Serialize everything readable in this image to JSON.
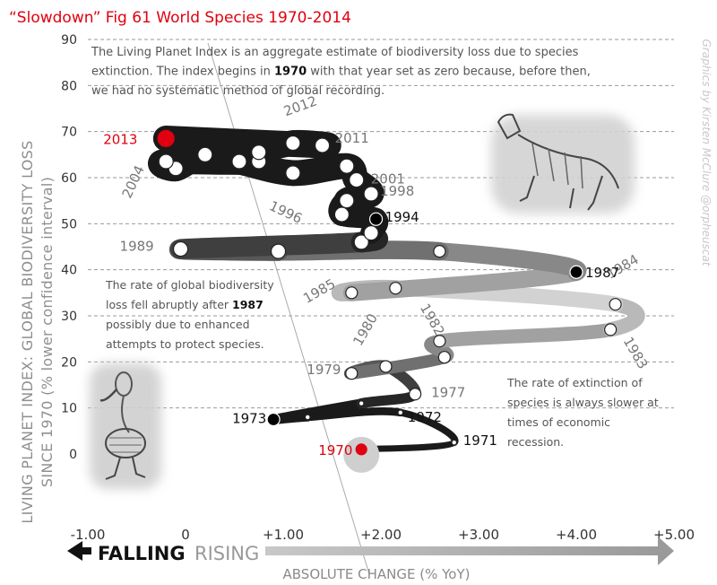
{
  "chart_data": {
    "type": "line",
    "title": "“Slowdown” Fig 61 World Species 1970-2014",
    "ylabel_line1": "LIVING PLANET INDEX: GLOBAL BIODIVERSITY LOSS",
    "ylabel_line2": "SINCE 1970 (% lower confidence interval)",
    "xlabel": "ABSOLUTE CHANGE (% YoY)",
    "falling_label": "FALLING",
    "rising_label": "RISING",
    "credit": "Graphics by Kirsten McClure @orpheuscat",
    "xlim": [
      -1,
      5
    ],
    "ylim": [
      0,
      90
    ],
    "xticks": [
      "-1.00",
      "0",
      "+1.00",
      "+2.00",
      "+3.00",
      "+4.00",
      "+5.00"
    ],
    "yticks": [
      "0",
      "10",
      "20",
      "30",
      "40",
      "50",
      "60",
      "70",
      "80",
      "90"
    ],
    "grid": "horizontal dashed",
    "colors": {
      "title": "#e0000f",
      "highlight": "#e0000f",
      "path_dark": "#1a1a1a",
      "path_light": "#d2d2d2",
      "grid": "#999999",
      "axis_text": "#6e6e6e"
    },
    "series": [
      {
        "points": [
          {
            "x": 1.8,
            "y": 1
          },
          {
            "x": 2.75,
            "y": 2.5
          },
          {
            "x": 2.2,
            "y": 9
          },
          {
            "x": 1.25,
            "y": 8
          },
          {
            "x": 0.9,
            "y": 7.5
          },
          {
            "x": 1.8,
            "y": 11
          },
          {
            "x": 2.35,
            "y": 13
          },
          {
            "x": 2.05,
            "y": 19
          },
          {
            "x": 1.7,
            "y": 17.5
          },
          {
            "x": 2.65,
            "y": 21
          },
          {
            "x": 2.6,
            "y": 24.5
          },
          {
            "x": 4.35,
            "y": 27
          },
          {
            "x": 4.4,
            "y": 32.5
          },
          {
            "x": 2.15,
            "y": 36
          },
          {
            "x": 1.7,
            "y": 35
          },
          {
            "x": 4.0,
            "y": 39.5
          },
          {
            "x": 2.6,
            "y": 44
          },
          {
            "x": 0.95,
            "y": 44
          },
          {
            "x": -0.05,
            "y": 44.5
          },
          {
            "x": 1.8,
            "y": 46
          },
          {
            "x": 1.9,
            "y": 48
          },
          {
            "x": 1.95,
            "y": 51
          },
          {
            "x": 1.6,
            "y": 52
          },
          {
            "x": 1.65,
            "y": 55
          },
          {
            "x": 1.9,
            "y": 56.5
          },
          {
            "x": 1.75,
            "y": 59.5
          },
          {
            "x": 1.65,
            "y": 62.5
          },
          {
            "x": 1.1,
            "y": 61
          },
          {
            "x": 0.55,
            "y": 63.5
          },
          {
            "x": 0.2,
            "y": 65
          },
          {
            "x": -0.1,
            "y": 62
          },
          {
            "x": -0.2,
            "y": 63.5
          },
          {
            "x": 0.75,
            "y": 63.5
          },
          {
            "x": 0.75,
            "y": 65.5
          },
          {
            "x": 1.1,
            "y": 67.5
          },
          {
            "x": 1.4,
            "y": 67
          },
          {
            "x": -0.2,
            "y": 68.5
          }
        ]
      }
    ],
    "year_labels": [
      {
        "year": "1970",
        "x": 1.8,
        "y": 1,
        "color": "red"
      },
      {
        "year": "1971",
        "x": 2.75,
        "y": 2.5,
        "color": "black"
      },
      {
        "year": "1972",
        "x": 2.2,
        "y": 9,
        "color": "black"
      },
      {
        "year": "1973",
        "x": 0.9,
        "y": 7.5,
        "color": "black"
      },
      {
        "year": "1977",
        "x": 2.35,
        "y": 13,
        "color": "gray"
      },
      {
        "year": "1979",
        "x": 1.7,
        "y": 17.5,
        "color": "gray"
      },
      {
        "year": "1980",
        "x": 2.05,
        "y": 19,
        "color": "gray"
      },
      {
        "year": "1982",
        "x": 2.6,
        "y": 24.5,
        "color": "gray"
      },
      {
        "year": "1983",
        "x": 4.35,
        "y": 27,
        "color": "gray"
      },
      {
        "year": "1984",
        "x": 4.4,
        "y": 32.5,
        "color": "gray"
      },
      {
        "year": "1985",
        "x": 1.7,
        "y": 35,
        "color": "gray"
      },
      {
        "year": "1987",
        "x": 4.0,
        "y": 39.5,
        "color": "black"
      },
      {
        "year": "1989",
        "x": -0.05,
        "y": 44.5,
        "color": "gray"
      },
      {
        "year": "1994",
        "x": 1.95,
        "y": 51,
        "color": "black"
      },
      {
        "year": "1996",
        "x": 1.6,
        "y": 52,
        "color": "gray"
      },
      {
        "year": "1998",
        "x": 1.9,
        "y": 56.5,
        "color": "gray"
      },
      {
        "year": "2001",
        "x": 1.75,
        "y": 59.5,
        "color": "gray"
      },
      {
        "year": "2004",
        "x": -0.2,
        "y": 63.5,
        "color": "gray"
      },
      {
        "year": "2011",
        "x": 1.4,
        "y": 67,
        "color": "gray"
      },
      {
        "year": "2012",
        "x": 1.1,
        "y": 67.5,
        "color": "gray"
      },
      {
        "year": "2013",
        "x": -0.2,
        "y": 68.5,
        "color": "red"
      }
    ],
    "annotations": [
      {
        "lines": [
          [
            {
              "t": "The Living Planet Index is an aggregate estimate of biodiversity loss due to species"
            }
          ],
          [
            {
              "t": "extinction. The index begins in "
            },
            {
              "t": "1970",
              "b": true
            },
            {
              "t": " with that year set as zero because, before then,"
            }
          ],
          [
            {
              "t": "we had no systematic method of global recording."
            }
          ]
        ]
      },
      {
        "lines": [
          [
            {
              "t": "The rate of global biodiversity"
            }
          ],
          [
            {
              "t": "loss fell abruptly after "
            },
            {
              "t": "1987",
              "b": true
            }
          ],
          [
            {
              "t": "possibly due to enhanced"
            }
          ],
          [
            {
              "t": "attempts to protect species."
            }
          ]
        ]
      },
      {
        "lines": [
          [
            {
              "t": "The rate of extinction of"
            }
          ],
          [
            {
              "t": "species is always slower at"
            }
          ],
          [
            {
              "t": "times of economic"
            }
          ],
          [
            {
              "t": "recession."
            }
          ]
        ]
      }
    ]
  }
}
